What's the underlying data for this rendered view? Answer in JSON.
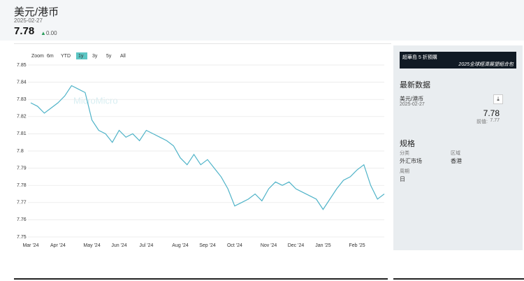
{
  "header": {
    "title": "美元/港币",
    "date": "2025-02-27",
    "value": "7.78",
    "change": "0.00"
  },
  "toolbar": {
    "zoom": "Zoom",
    "ranges": [
      "6m",
      "YTD",
      "1y",
      "3y",
      "5y",
      "All"
    ]
  },
  "watermark": "MicroMicro",
  "chart_data": {
    "type": "line",
    "categories": [
      "Mar '24",
      null,
      null,
      null,
      "Apr '24",
      null,
      null,
      null,
      null,
      "May '24",
      null,
      null,
      null,
      "Jun '24",
      null,
      null,
      null,
      "Jul '24",
      null,
      null,
      null,
      null,
      "Aug '24",
      null,
      null,
      null,
      "Sep '24",
      null,
      null,
      null,
      "Oct '24",
      null,
      null,
      null,
      null,
      "Nov '24",
      null,
      null,
      null,
      "Dec '24",
      null,
      null,
      null,
      "Jan '25",
      null,
      null,
      null,
      null,
      "Feb '25",
      null,
      null,
      null,
      null
    ],
    "series": [
      {
        "name": "美元/港币",
        "color": "#4fb3c8",
        "values": [
          7.828,
          7.826,
          7.822,
          7.825,
          7.828,
          7.832,
          7.838,
          7.836,
          7.834,
          7.818,
          7.812,
          7.81,
          7.805,
          7.812,
          7.808,
          7.81,
          7.806,
          7.812,
          7.81,
          7.808,
          7.806,
          7.803,
          7.796,
          7.792,
          7.798,
          7.792,
          7.795,
          7.79,
          7.785,
          7.778,
          7.768,
          7.77,
          7.772,
          7.775,
          7.771,
          7.778,
          7.782,
          7.78,
          7.782,
          7.778,
          7.776,
          7.774,
          7.772,
          7.766,
          7.772,
          7.778,
          7.783,
          7.785,
          7.789,
          7.792,
          7.78,
          7.772,
          7.775
        ]
      }
    ],
    "ylim": [
      7.75,
      7.85
    ],
    "yticks": [
      7.75,
      7.76,
      7.77,
      7.78,
      7.79,
      7.8,
      7.81,
      7.82,
      7.83,
      7.84,
      7.85
    ],
    "grid": true
  },
  "banner": {
    "line1": "超華島 5 折預購",
    "line2": "2025全球經濟展望組合包"
  },
  "latest": {
    "heading": "最新数据",
    "name": "美元/港币",
    "date": "2025-02-27",
    "value": "7.78",
    "prev_label": "前值:",
    "prev_value": "7.77"
  },
  "spec": {
    "heading": "规格",
    "items": [
      {
        "label": "分类",
        "value": "外汇市场"
      },
      {
        "label": "区域",
        "value": "香港"
      },
      {
        "label": "周期",
        "value": "日"
      }
    ]
  }
}
